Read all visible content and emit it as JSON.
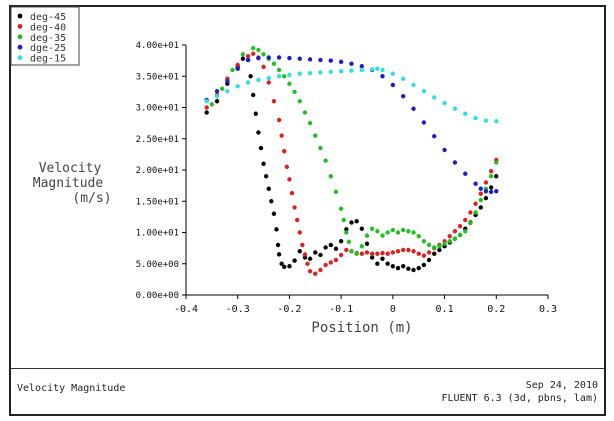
{
  "footer": {
    "title": "Velocity Magnitude",
    "date": "Sep 24, 2010",
    "version": "FLUENT 6.3 (3d, pbns, lam)"
  },
  "chart_data": {
    "type": "scatter",
    "title": "",
    "xlabel": "Position (m)",
    "ylabel_lines": [
      "Velocity",
      "Magnitude",
      "(m/s)"
    ],
    "xlim": [
      -0.4,
      0.3
    ],
    "ylim": [
      0,
      40
    ],
    "xticks": [
      -0.4,
      -0.3,
      -0.2,
      -0.1,
      0,
      0.1,
      0.2,
      0.3
    ],
    "xtick_labels": [
      "-0.4",
      "-0.3",
      "-0.2",
      "-0.1",
      "0",
      "0.1",
      "0.2",
      "0.3"
    ],
    "yticks": [
      0,
      5,
      10,
      15,
      20,
      25,
      30,
      35,
      40
    ],
    "ytick_labels": [
      "0.00e+00",
      "5.00e+00",
      "1.00e+01",
      "1.50e+01",
      "2.00e+01",
      "2.50e+01",
      "3.00e+01",
      "3.50e+01",
      "4.00e+01"
    ],
    "grid": false,
    "legend": "top-left",
    "series": [
      {
        "name": "deg-45",
        "color": "#000000",
        "points": [
          [
            -0.36,
            29.2
          ],
          [
            -0.34,
            31.0
          ],
          [
            -0.32,
            33.8
          ],
          [
            -0.3,
            36.5
          ],
          [
            -0.29,
            37.8
          ],
          [
            -0.28,
            37.6
          ],
          [
            -0.275,
            35.0
          ],
          [
            -0.27,
            32.0
          ],
          [
            -0.265,
            29.0
          ],
          [
            -0.26,
            26.0
          ],
          [
            -0.255,
            23.5
          ],
          [
            -0.25,
            21.0
          ],
          [
            -0.245,
            19.0
          ],
          [
            -0.24,
            17.0
          ],
          [
            -0.235,
            15.0
          ],
          [
            -0.23,
            13.0
          ],
          [
            -0.225,
            10.5
          ],
          [
            -0.222,
            8.0
          ],
          [
            -0.22,
            6.5
          ],
          [
            -0.215,
            5.0
          ],
          [
            -0.21,
            4.5
          ],
          [
            -0.2,
            4.6
          ],
          [
            -0.19,
            5.5
          ],
          [
            -0.18,
            7.0
          ],
          [
            -0.17,
            6.0
          ],
          [
            -0.16,
            5.8
          ],
          [
            -0.15,
            6.8
          ],
          [
            -0.14,
            6.4
          ],
          [
            -0.13,
            7.6
          ],
          [
            -0.12,
            8.0
          ],
          [
            -0.11,
            7.4
          ],
          [
            -0.1,
            8.6
          ],
          [
            -0.09,
            10.5
          ],
          [
            -0.08,
            11.6
          ],
          [
            -0.07,
            11.8
          ],
          [
            -0.06,
            10.6
          ],
          [
            -0.05,
            8.2
          ],
          [
            -0.04,
            6.0
          ],
          [
            -0.03,
            5.0
          ],
          [
            -0.02,
            5.8
          ],
          [
            -0.01,
            5.0
          ],
          [
            0.0,
            4.6
          ],
          [
            0.01,
            4.3
          ],
          [
            0.02,
            4.6
          ],
          [
            0.03,
            4.2
          ],
          [
            0.04,
            4.0
          ],
          [
            0.05,
            4.3
          ],
          [
            0.06,
            4.8
          ],
          [
            0.07,
            5.6
          ],
          [
            0.08,
            6.6
          ],
          [
            0.09,
            7.2
          ],
          [
            0.1,
            7.8
          ],
          [
            0.11,
            8.4
          ],
          [
            0.12,
            9.0
          ],
          [
            0.13,
            9.6
          ],
          [
            0.14,
            10.6
          ],
          [
            0.15,
            11.6
          ],
          [
            0.16,
            12.8
          ],
          [
            0.17,
            14.0
          ],
          [
            0.18,
            15.5
          ],
          [
            0.19,
            17.2
          ],
          [
            0.2,
            19.0
          ]
        ]
      },
      {
        "name": "deg-40",
        "color": "#e02020",
        "points": [
          [
            -0.36,
            30.0
          ],
          [
            -0.34,
            32.0
          ],
          [
            -0.32,
            34.6
          ],
          [
            -0.3,
            36.8
          ],
          [
            -0.28,
            38.2
          ],
          [
            -0.27,
            38.6
          ],
          [
            -0.26,
            38.0
          ],
          [
            -0.25,
            36.5
          ],
          [
            -0.24,
            34.0
          ],
          [
            -0.23,
            31.0
          ],
          [
            -0.22,
            28.0
          ],
          [
            -0.215,
            25.5
          ],
          [
            -0.21,
            23.0
          ],
          [
            -0.205,
            20.5
          ],
          [
            -0.2,
            18.5
          ],
          [
            -0.195,
            16.3
          ],
          [
            -0.19,
            14.0
          ],
          [
            -0.185,
            12.0
          ],
          [
            -0.18,
            10.0
          ],
          [
            -0.175,
            8.0
          ],
          [
            -0.17,
            6.5
          ],
          [
            -0.165,
            5.0
          ],
          [
            -0.16,
            3.8
          ],
          [
            -0.15,
            3.4
          ],
          [
            -0.14,
            4.0
          ],
          [
            -0.13,
            4.8
          ],
          [
            -0.12,
            5.2
          ],
          [
            -0.11,
            5.6
          ],
          [
            -0.1,
            6.4
          ],
          [
            -0.09,
            7.2
          ],
          [
            -0.08,
            7.0
          ],
          [
            -0.07,
            6.7
          ],
          [
            -0.06,
            6.6
          ],
          [
            -0.05,
            6.8
          ],
          [
            -0.04,
            6.6
          ],
          [
            -0.03,
            6.6
          ],
          [
            -0.02,
            6.7
          ],
          [
            -0.01,
            6.6
          ],
          [
            0.0,
            6.8
          ],
          [
            0.01,
            7.0
          ],
          [
            0.02,
            7.2
          ],
          [
            0.03,
            7.2
          ],
          [
            0.04,
            7.0
          ],
          [
            0.05,
            6.6
          ],
          [
            0.06,
            6.3
          ],
          [
            0.07,
            6.8
          ],
          [
            0.08,
            7.5
          ],
          [
            0.09,
            8.0
          ],
          [
            0.1,
            8.6
          ],
          [
            0.11,
            9.4
          ],
          [
            0.12,
            10.2
          ],
          [
            0.13,
            11.0
          ],
          [
            0.14,
            12.0
          ],
          [
            0.15,
            13.2
          ],
          [
            0.16,
            14.6
          ],
          [
            0.17,
            16.2
          ],
          [
            0.18,
            18.0
          ],
          [
            0.19,
            19.8
          ],
          [
            0.2,
            21.6
          ]
        ]
      },
      {
        "name": "deg-35",
        "color": "#20c020",
        "points": [
          [
            -0.35,
            30.5
          ],
          [
            -0.33,
            33.0
          ],
          [
            -0.31,
            36.0
          ],
          [
            -0.29,
            38.5
          ],
          [
            -0.27,
            39.5
          ],
          [
            -0.26,
            39.2
          ],
          [
            -0.25,
            38.5
          ],
          [
            -0.24,
            37.8
          ],
          [
            -0.23,
            37.0
          ],
          [
            -0.22,
            36.0
          ],
          [
            -0.21,
            35.0
          ],
          [
            -0.2,
            33.8
          ],
          [
            -0.19,
            32.5
          ],
          [
            -0.18,
            31.0
          ],
          [
            -0.17,
            29.2
          ],
          [
            -0.16,
            27.5
          ],
          [
            -0.15,
            25.5
          ],
          [
            -0.14,
            23.5
          ],
          [
            -0.13,
            21.5
          ],
          [
            -0.12,
            19.0
          ],
          [
            -0.11,
            16.5
          ],
          [
            -0.1,
            13.8
          ],
          [
            -0.095,
            12.0
          ],
          [
            -0.09,
            10.0
          ],
          [
            -0.085,
            8.5
          ],
          [
            -0.08,
            7.0
          ],
          [
            -0.07,
            6.6
          ],
          [
            -0.06,
            7.8
          ],
          [
            -0.05,
            9.5
          ],
          [
            -0.04,
            10.6
          ],
          [
            -0.03,
            10.2
          ],
          [
            -0.02,
            9.5
          ],
          [
            -0.01,
            10.0
          ],
          [
            0.0,
            10.4
          ],
          [
            0.01,
            10.0
          ],
          [
            0.02,
            10.4
          ],
          [
            0.03,
            10.2
          ],
          [
            0.04,
            10.0
          ],
          [
            0.05,
            9.4
          ],
          [
            0.06,
            8.6
          ],
          [
            0.07,
            8.0
          ],
          [
            0.08,
            7.6
          ],
          [
            0.09,
            7.8
          ],
          [
            0.1,
            8.2
          ],
          [
            0.11,
            8.6
          ],
          [
            0.12,
            9.0
          ],
          [
            0.13,
            9.6
          ],
          [
            0.14,
            10.2
          ],
          [
            0.15,
            11.5
          ],
          [
            0.16,
            13.2
          ],
          [
            0.17,
            15.2
          ],
          [
            0.18,
            17.0
          ],
          [
            0.19,
            19.0
          ],
          [
            0.2,
            21.2
          ]
        ]
      },
      {
        "name": "dge-25",
        "color": "#1c1cc8",
        "points": [
          [
            -0.36,
            31.2
          ],
          [
            -0.34,
            32.6
          ],
          [
            -0.32,
            34.2
          ],
          [
            -0.3,
            36.2
          ],
          [
            -0.28,
            37.6
          ],
          [
            -0.26,
            37.9
          ],
          [
            -0.24,
            38.0
          ],
          [
            -0.22,
            38.0
          ],
          [
            -0.2,
            37.9
          ],
          [
            -0.18,
            37.8
          ],
          [
            -0.16,
            37.7
          ],
          [
            -0.14,
            37.6
          ],
          [
            -0.12,
            37.5
          ],
          [
            -0.1,
            37.3
          ],
          [
            -0.08,
            37.0
          ],
          [
            -0.06,
            36.6
          ],
          [
            -0.04,
            36.0
          ],
          [
            -0.02,
            35.0
          ],
          [
            0.0,
            33.6
          ],
          [
            0.02,
            31.8
          ],
          [
            0.04,
            29.8
          ],
          [
            0.06,
            27.6
          ],
          [
            0.08,
            25.4
          ],
          [
            0.1,
            23.2
          ],
          [
            0.12,
            21.2
          ],
          [
            0.14,
            19.4
          ],
          [
            0.16,
            17.8
          ],
          [
            0.17,
            17.0
          ],
          [
            0.18,
            16.6
          ],
          [
            0.19,
            16.5
          ],
          [
            0.2,
            16.6
          ]
        ]
      },
      {
        "name": "deg-15",
        "color": "#30e0e0",
        "points": [
          [
            -0.36,
            31.0
          ],
          [
            -0.34,
            31.8
          ],
          [
            -0.32,
            32.6
          ],
          [
            -0.3,
            33.4
          ],
          [
            -0.28,
            34.0
          ],
          [
            -0.26,
            34.4
          ],
          [
            -0.24,
            34.7
          ],
          [
            -0.22,
            35.0
          ],
          [
            -0.2,
            35.2
          ],
          [
            -0.18,
            35.4
          ],
          [
            -0.16,
            35.5
          ],
          [
            -0.14,
            35.6
          ],
          [
            -0.12,
            35.7
          ],
          [
            -0.1,
            35.8
          ],
          [
            -0.08,
            35.9
          ],
          [
            -0.06,
            36.0
          ],
          [
            -0.04,
            36.1
          ],
          [
            -0.03,
            36.2
          ],
          [
            -0.02,
            36.0
          ],
          [
            0.0,
            35.4
          ],
          [
            0.02,
            34.6
          ],
          [
            0.04,
            33.6
          ],
          [
            0.06,
            32.6
          ],
          [
            0.08,
            31.6
          ],
          [
            0.1,
            30.7
          ],
          [
            0.12,
            29.8
          ],
          [
            0.14,
            29.0
          ],
          [
            0.16,
            28.3
          ],
          [
            0.18,
            27.9
          ],
          [
            0.2,
            27.8
          ]
        ]
      }
    ]
  }
}
